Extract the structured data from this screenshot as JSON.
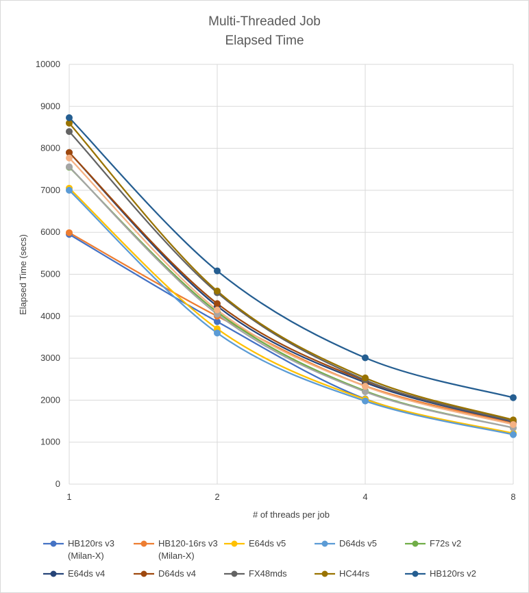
{
  "chart_data": {
    "type": "line",
    "title": [
      "Multi-Threaded Job",
      "Elapsed Time"
    ],
    "xlabel": "# of threads per job",
    "ylabel": "Elapsed Time (secs)",
    "categories": [
      "1",
      "2",
      "4",
      "8"
    ],
    "ylim": [
      0,
      10000
    ],
    "yticks": [
      "0",
      "1000",
      "2000",
      "3000",
      "4000",
      "5000",
      "6000",
      "7000",
      "8000",
      "9000",
      "10000"
    ],
    "grid": true,
    "legend_position": "bottom",
    "series": [
      {
        "name": "HB120rs v3 (Milan-X)",
        "label_lines": [
          "HB120rs v3",
          "(Milan-X)"
        ],
        "color": "#4472C4",
        "values": [
          5950,
          3870,
          2030,
          1190
        ]
      },
      {
        "name": "HB120-16rs v3 (Milan-X)",
        "label_lines": [
          "HB120-16rs v3",
          "(Milan-X)"
        ],
        "color": "#ED7D31",
        "values": [
          5990,
          4000,
          2340,
          1460
        ]
      },
      {
        "name": "E64ds v5",
        "label_lines": [
          "E64ds v5"
        ],
        "color": "#FFC000",
        "values": [
          7050,
          3700,
          2020,
          1210
        ]
      },
      {
        "name": "D64ds v5",
        "label_lines": [
          "D64ds v5"
        ],
        "color": "#5B9BD5",
        "values": [
          7000,
          3600,
          1980,
          1180
        ]
      },
      {
        "name": "F72s v2",
        "label_lines": [
          "F72s v2"
        ],
        "color": "#70AD47",
        "values": [
          7550,
          4100,
          2220,
          1340
        ]
      },
      {
        "name": "E64ds v4",
        "label_lines": [
          "E64ds v4"
        ],
        "color": "#264478",
        "values": [
          7900,
          4240,
          2420,
          1480
        ]
      },
      {
        "name": "D64ds v4",
        "label_lines": [
          "D64ds v4"
        ],
        "color": "#9E480E",
        "values": [
          7900,
          4300,
          2460,
          1500
        ]
      },
      {
        "name": "FX48mds",
        "label_lines": [
          "FX48mds"
        ],
        "color": "#636363",
        "values": [
          8400,
          4560,
          2480,
          1500
        ]
      },
      {
        "name": "HC44rs",
        "label_lines": [
          "HC44rs"
        ],
        "color": "#997300",
        "values": [
          8600,
          4600,
          2530,
          1530
        ]
      },
      {
        "name": "HB120rs v2",
        "label_lines": [
          "HB120rs v2"
        ],
        "color": "#255E91",
        "values": [
          8730,
          5080,
          3010,
          2060
        ]
      },
      {
        "name": "",
        "label_lines": [],
        "color": "#A5A5A5",
        "values": [
          7560,
          4050,
          2200,
          1340
        ]
      },
      {
        "name": "",
        "label_lines": [],
        "color": "#F4B183",
        "values": [
          7770,
          4150,
          2330,
          1420
        ]
      }
    ]
  }
}
